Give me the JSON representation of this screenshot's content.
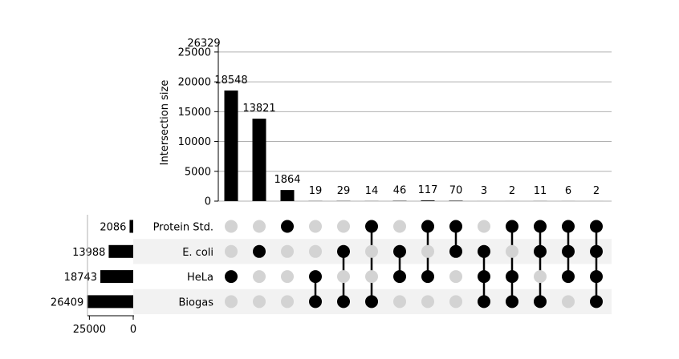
{
  "chart_data": {
    "type": "bar",
    "subtype": "upset",
    "ylabel": "Intersection size",
    "ylim": [
      0,
      26329
    ],
    "y_top_label": "26329",
    "y_ticks": [
      0,
      5000,
      10000,
      15000,
      20000,
      25000
    ],
    "grid": true,
    "sets": [
      {
        "name": "Protein Std.",
        "size": 2086
      },
      {
        "name": "E. coli",
        "size": 13988
      },
      {
        "name": "HeLa",
        "size": 18743
      },
      {
        "name": "Biogas",
        "size": 26409
      }
    ],
    "set_size_ticks": [
      25000,
      0
    ],
    "set_size_xlim": [
      0,
      27000
    ],
    "intersections": [
      {
        "value": 18548,
        "members": [
          "HeLa"
        ]
      },
      {
        "value": 13821,
        "members": [
          "E. coli"
        ]
      },
      {
        "value": 1864,
        "members": [
          "Protein Std."
        ]
      },
      {
        "value": 19,
        "members": [
          "HeLa",
          "Biogas"
        ]
      },
      {
        "value": 29,
        "members": [
          "E. coli",
          "Biogas"
        ]
      },
      {
        "value": 14,
        "members": [
          "Protein Std.",
          "Biogas"
        ]
      },
      {
        "value": 46,
        "members": [
          "E. coli",
          "HeLa"
        ]
      },
      {
        "value": 117,
        "members": [
          "Protein Std.",
          "HeLa"
        ]
      },
      {
        "value": 70,
        "members": [
          "Protein Std.",
          "E. coli"
        ]
      },
      {
        "value": 3,
        "members": [
          "E. coli",
          "HeLa",
          "Biogas"
        ]
      },
      {
        "value": 2,
        "members": [
          "Protein Std.",
          "HeLa",
          "Biogas"
        ]
      },
      {
        "value": 11,
        "members": [
          "Protein Std.",
          "E. coli",
          "Biogas"
        ]
      },
      {
        "value": 6,
        "members": [
          "Protein Std.",
          "E. coli",
          "HeLa"
        ]
      },
      {
        "value": 2,
        "members": [
          "Protein Std.",
          "E. coli",
          "HeLa",
          "Biogas"
        ]
      }
    ],
    "colors": {
      "bar": "#000000",
      "dot_active": "#000000",
      "dot_inactive": "#d3d3d3",
      "grid": "#b0b0b0",
      "band": "#f2f2f2"
    }
  }
}
